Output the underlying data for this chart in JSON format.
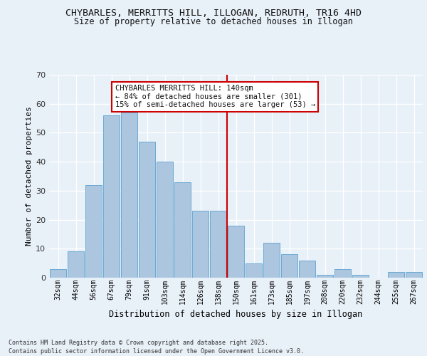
{
  "title": "CHYBARLES, MERRITTS HILL, ILLOGAN, REDRUTH, TR16 4HD",
  "subtitle": "Size of property relative to detached houses in Illogan",
  "xlabel": "Distribution of detached houses by size in Illogan",
  "ylabel": "Number of detached properties",
  "categories": [
    "32sqm",
    "44sqm",
    "56sqm",
    "67sqm",
    "79sqm",
    "91sqm",
    "103sqm",
    "114sqm",
    "126sqm",
    "138sqm",
    "150sqm",
    "161sqm",
    "173sqm",
    "185sqm",
    "197sqm",
    "208sqm",
    "220sqm",
    "232sqm",
    "244sqm",
    "255sqm",
    "267sqm"
  ],
  "values": [
    3,
    9,
    32,
    56,
    57,
    47,
    40,
    33,
    23,
    23,
    18,
    5,
    12,
    8,
    6,
    1,
    3,
    1,
    0,
    2,
    2
  ],
  "bar_color": "#adc6e0",
  "bar_edge_color": "#6aaad4",
  "vline_x_index": 9.5,
  "vline_color": "#cc0000",
  "annotation_text": "CHYBARLES MERRITTS HILL: 140sqm\n← 84% of detached houses are smaller (301)\n15% of semi-detached houses are larger (53) →",
  "annotation_box_color": "#ffffff",
  "annotation_box_edge": "#cc0000",
  "ylim": [
    0,
    70
  ],
  "yticks": [
    0,
    10,
    20,
    30,
    40,
    50,
    60,
    70
  ],
  "background_color": "#e8f0f8",
  "grid_color": "#ffffff",
  "footer_line1": "Contains HM Land Registry data © Crown copyright and database right 2025.",
  "footer_line2": "Contains public sector information licensed under the Open Government Licence v3.0."
}
